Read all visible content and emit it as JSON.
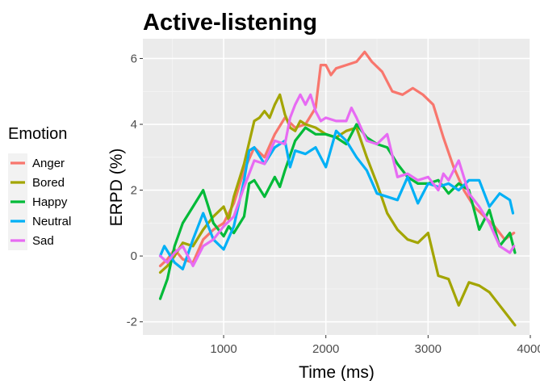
{
  "chart_data": {
    "type": "line",
    "title": "Active-listening",
    "xlabel": "Time (ms)",
    "ylabel": "ERPD (%)",
    "xlim": [
      210,
      4000
    ],
    "ylim": [
      -2.4,
      6.6
    ],
    "xticks": [
      "1000",
      "2000",
      "3000",
      "4000"
    ],
    "yticks": [
      "-2",
      "0",
      "2",
      "4",
      "6"
    ],
    "grid": true,
    "legend": {
      "title": "Emotion",
      "position": "left"
    },
    "series": [
      {
        "name": "Anger",
        "color": "#F8766D",
        "x": [
          380,
          450,
          520,
          600,
          700,
          800,
          900,
          1000,
          1100,
          1200,
          1300,
          1400,
          1500,
          1600,
          1700,
          1800,
          1900,
          1950,
          2000,
          2050,
          2100,
          2200,
          2300,
          2380,
          2450,
          2550,
          2650,
          2750,
          2850,
          2950,
          3050,
          3150,
          3250,
          3350,
          3450,
          3550,
          3650,
          3750,
          3840
        ],
        "y": [
          -0.3,
          -0.1,
          0.2,
          -0.1,
          -0.2,
          0.5,
          0.8,
          1.0,
          1.6,
          2.6,
          3.3,
          3.0,
          3.7,
          4.2,
          3.9,
          4.0,
          4.5,
          5.8,
          5.8,
          5.5,
          5.7,
          5.8,
          5.9,
          6.2,
          5.9,
          5.6,
          5.0,
          4.9,
          5.1,
          4.9,
          4.6,
          3.6,
          2.7,
          2.0,
          1.5,
          1.2,
          0.9,
          0.5,
          0.7
        ]
      },
      {
        "name": "Bored",
        "color": "#A3A500",
        "x": [
          380,
          450,
          520,
          600,
          700,
          800,
          900,
          1000,
          1050,
          1100,
          1200,
          1300,
          1350,
          1400,
          1450,
          1500,
          1550,
          1600,
          1650,
          1700,
          1750,
          1800,
          1900,
          2000,
          2100,
          2200,
          2300,
          2400,
          2500,
          2600,
          2700,
          2800,
          2900,
          3000,
          3100,
          3200,
          3300,
          3400,
          3500,
          3600,
          3700,
          3800,
          3850
        ],
        "y": [
          -0.5,
          -0.3,
          0.0,
          0.4,
          0.3,
          0.8,
          1.2,
          1.5,
          1.1,
          1.8,
          2.8,
          4.1,
          4.2,
          4.4,
          4.2,
          4.6,
          4.9,
          4.3,
          3.9,
          3.8,
          4.1,
          4.0,
          3.9,
          3.7,
          3.6,
          3.8,
          3.9,
          3.0,
          2.2,
          1.3,
          0.8,
          0.5,
          0.4,
          0.7,
          -0.6,
          -0.7,
          -1.5,
          -0.8,
          -0.9,
          -1.1,
          -1.5,
          -1.9,
          -2.1
        ]
      },
      {
        "name": "Happy",
        "color": "#00BA38",
        "x": [
          380,
          450,
          520,
          600,
          700,
          800,
          850,
          900,
          1000,
          1050,
          1100,
          1200,
          1250,
          1300,
          1400,
          1500,
          1550,
          1600,
          1700,
          1800,
          1900,
          2000,
          2100,
          2200,
          2300,
          2400,
          2500,
          2600,
          2700,
          2800,
          2900,
          3000,
          3100,
          3200,
          3300,
          3400,
          3500,
          3600,
          3700,
          3800,
          3850
        ],
        "y": [
          -1.3,
          -0.7,
          0.3,
          1.0,
          1.5,
          2.0,
          1.5,
          1.0,
          0.6,
          0.9,
          0.7,
          1.2,
          2.2,
          2.3,
          1.8,
          2.4,
          2.1,
          2.6,
          3.5,
          3.9,
          3.7,
          3.7,
          3.6,
          3.4,
          4.0,
          3.6,
          3.4,
          3.3,
          2.8,
          2.4,
          2.2,
          2.2,
          2.3,
          1.9,
          2.2,
          2.0,
          0.8,
          1.4,
          0.3,
          0.7,
          0.1
        ]
      },
      {
        "name": "Neutral",
        "color": "#00B0F6",
        "x": [
          380,
          420,
          460,
          520,
          600,
          700,
          800,
          900,
          1000,
          1100,
          1200,
          1250,
          1300,
          1400,
          1500,
          1600,
          1650,
          1700,
          1800,
          1900,
          2000,
          2100,
          2200,
          2300,
          2400,
          2500,
          2600,
          2700,
          2800,
          2900,
          3000,
          3100,
          3200,
          3300,
          3400,
          3500,
          3600,
          3700,
          3800,
          3830
        ],
        "y": [
          0.0,
          0.3,
          0.1,
          -0.2,
          -0.4,
          0.5,
          1.3,
          0.5,
          0.2,
          0.9,
          2.3,
          3.2,
          3.3,
          2.8,
          3.3,
          3.5,
          2.7,
          3.2,
          3.1,
          3.3,
          2.7,
          3.8,
          3.5,
          3.0,
          2.6,
          1.9,
          1.8,
          1.7,
          2.4,
          1.6,
          2.2,
          2.1,
          2.2,
          2.0,
          2.3,
          2.3,
          1.5,
          1.9,
          1.7,
          1.3
        ]
      },
      {
        "name": "Sad",
        "color": "#E76BF3",
        "x": [
          380,
          450,
          520,
          600,
          700,
          800,
          900,
          1000,
          1100,
          1200,
          1300,
          1400,
          1500,
          1600,
          1650,
          1700,
          1750,
          1800,
          1850,
          1900,
          1950,
          2000,
          2100,
          2200,
          2250,
          2300,
          2400,
          2500,
          2600,
          2700,
          2800,
          2900,
          3000,
          3100,
          3150,
          3200,
          3300,
          3400,
          3500,
          3600,
          3700,
          3800,
          3840
        ],
        "y": [
          0.0,
          -0.2,
          0.1,
          0.3,
          -0.3,
          0.3,
          0.5,
          0.9,
          1.2,
          2.1,
          2.9,
          2.8,
          3.5,
          3.4,
          4.2,
          4.6,
          4.9,
          4.6,
          4.9,
          4.4,
          4.1,
          4.2,
          4.1,
          4.1,
          4.5,
          4.2,
          3.5,
          3.4,
          3.7,
          2.4,
          2.5,
          2.3,
          2.4,
          2.0,
          2.5,
          2.3,
          2.9,
          1.9,
          1.5,
          1.0,
          0.3,
          0.1,
          0.3
        ]
      }
    ]
  }
}
